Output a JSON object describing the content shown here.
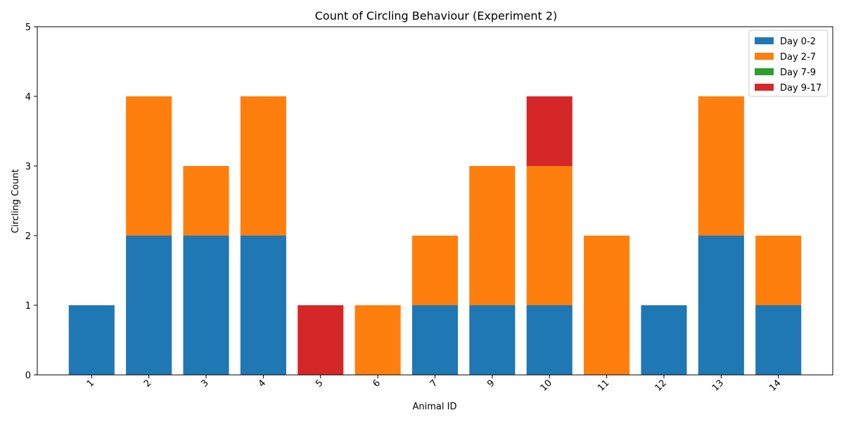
{
  "chart_data": {
    "type": "bar",
    "stacked": true,
    "title": "Count of Circling Behaviour (Experiment 2)",
    "xlabel": "Animal ID",
    "ylabel": "Circling Count",
    "categories": [
      "1",
      "2",
      "3",
      "4",
      "5",
      "6",
      "7",
      "9",
      "10",
      "11",
      "12",
      "13",
      "14"
    ],
    "ylim": [
      0,
      5
    ],
    "yticks": [
      0,
      1,
      2,
      3,
      4,
      5
    ],
    "legend_position": "top-right",
    "grid": false,
    "series": [
      {
        "name": "Day 0-2",
        "color": "#1f77b4",
        "values": [
          1,
          2,
          2,
          2,
          0,
          0,
          1,
          1,
          1,
          0,
          1,
          2,
          1
        ]
      },
      {
        "name": "Day 2-7",
        "color": "#ff7f0e",
        "values": [
          0,
          2,
          1,
          2,
          0,
          1,
          1,
          2,
          2,
          2,
          0,
          2,
          1
        ]
      },
      {
        "name": "Day 7-9",
        "color": "#2ca02c",
        "values": [
          0,
          0,
          0,
          0,
          0,
          0,
          0,
          0,
          0,
          0,
          0,
          0,
          0
        ]
      },
      {
        "name": "Day 9-17",
        "color": "#d62728",
        "values": [
          0,
          0,
          0,
          0,
          1,
          0,
          0,
          0,
          1,
          0,
          0,
          0,
          0
        ]
      }
    ]
  }
}
